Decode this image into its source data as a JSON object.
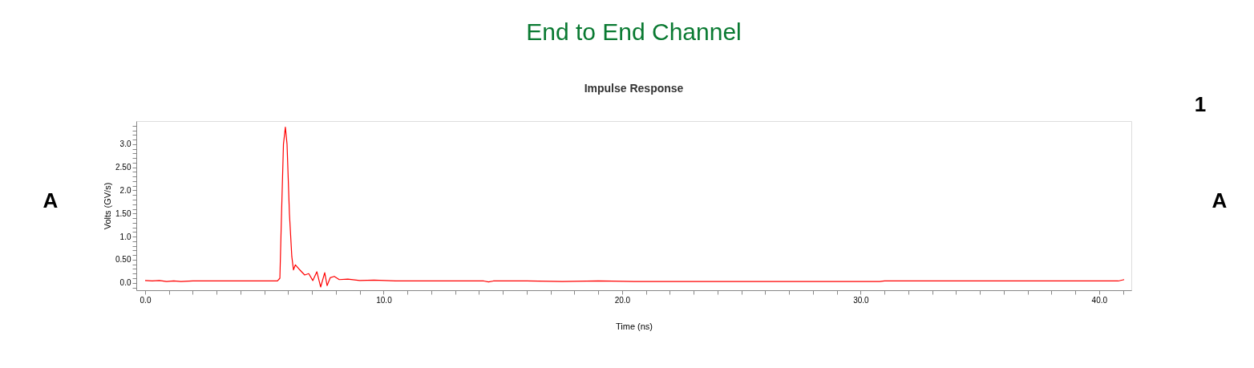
{
  "chart_data": {
    "type": "line",
    "title": "End to End Channel",
    "subtitle": "Impulse Response",
    "xlabel": "Time (ns)",
    "ylabel": "Volts (GV/s)",
    "annotations": [
      "A",
      "A",
      "1"
    ],
    "x": [
      0.0,
      0.3,
      0.6,
      0.9,
      1.2,
      1.5,
      2.0,
      3.0,
      4.0,
      5.0,
      5.55,
      5.65,
      5.72,
      5.8,
      5.88,
      5.95,
      6.05,
      6.15,
      6.22,
      6.3,
      6.45,
      6.69,
      6.86,
      7.03,
      7.2,
      7.36,
      7.53,
      7.63,
      7.76,
      7.93,
      8.14,
      8.5,
      9.0,
      9.6,
      10.5,
      14.2,
      14.4,
      14.6,
      16.0,
      17.5,
      19.0,
      20.5,
      25.0,
      30.8,
      31.0,
      35.5,
      37.5,
      39.5,
      40.8,
      41.05
    ],
    "series": [
      {
        "color": "#ff0000",
        "values": [
          0.05,
          0.04,
          0.05,
          0.03,
          0.04,
          0.03,
          0.04,
          0.04,
          0.04,
          0.04,
          0.04,
          0.1,
          1.5,
          3.0,
          3.37,
          3.0,
          1.5,
          0.57,
          0.28,
          0.39,
          0.3,
          0.17,
          0.2,
          0.05,
          0.24,
          -0.09,
          0.22,
          -0.06,
          0.11,
          0.14,
          0.07,
          0.08,
          0.05,
          0.06,
          0.04,
          0.04,
          0.02,
          0.04,
          0.04,
          0.03,
          0.04,
          0.03,
          0.03,
          0.03,
          0.04,
          0.04,
          0.04,
          0.04,
          0.04,
          0.07
        ]
      }
    ],
    "xlim": [
      -0.37,
      41.35
    ],
    "ylim": [
      -0.16,
      3.5
    ],
    "xticks": [
      {
        "value": 0,
        "label": "0.0"
      },
      {
        "value": 1,
        "label": null
      },
      {
        "value": 2,
        "label": null
      },
      {
        "value": 3,
        "label": null
      },
      {
        "value": 4,
        "label": null
      },
      {
        "value": 5,
        "label": null
      },
      {
        "value": 6,
        "label": null
      },
      {
        "value": 7,
        "label": null
      },
      {
        "value": 8,
        "label": null
      },
      {
        "value": 9,
        "label": null
      },
      {
        "value": 10,
        "label": "10.0"
      },
      {
        "value": 11,
        "label": null
      },
      {
        "value": 12,
        "label": null
      },
      {
        "value": 13,
        "label": null
      },
      {
        "value": 14,
        "label": null
      },
      {
        "value": 15,
        "label": null
      },
      {
        "value": 16,
        "label": null
      },
      {
        "value": 17,
        "label": null
      },
      {
        "value": 18,
        "label": null
      },
      {
        "value": 19,
        "label": null
      },
      {
        "value": 20,
        "label": "20.0"
      },
      {
        "value": 21,
        "label": null
      },
      {
        "value": 22,
        "label": null
      },
      {
        "value": 23,
        "label": null
      },
      {
        "value": 24,
        "label": null
      },
      {
        "value": 25,
        "label": null
      },
      {
        "value": 26,
        "label": null
      },
      {
        "value": 27,
        "label": null
      },
      {
        "value": 28,
        "label": null
      },
      {
        "value": 29,
        "label": null
      },
      {
        "value": 30,
        "label": "30.0"
      },
      {
        "value": 31,
        "label": null
      },
      {
        "value": 32,
        "label": null
      },
      {
        "value": 33,
        "label": null
      },
      {
        "value": 34,
        "label": null
      },
      {
        "value": 35,
        "label": null
      },
      {
        "value": 36,
        "label": null
      },
      {
        "value": 37,
        "label": null
      },
      {
        "value": 38,
        "label": null
      },
      {
        "value": 39,
        "label": null
      },
      {
        "value": 40,
        "label": "40.0"
      },
      {
        "value": 41,
        "label": null
      }
    ],
    "yticks": [
      {
        "value": -0.1,
        "label": null
      },
      {
        "value": 0,
        "label": "0.0"
      },
      {
        "value": 0.1,
        "label": null
      },
      {
        "value": 0.2,
        "label": null
      },
      {
        "value": 0.3,
        "label": null
      },
      {
        "value": 0.4,
        "label": null
      },
      {
        "value": 0.5,
        "label": "0.50"
      },
      {
        "value": 0.6,
        "label": null
      },
      {
        "value": 0.7,
        "label": null
      },
      {
        "value": 0.8,
        "label": null
      },
      {
        "value": 0.9,
        "label": null
      },
      {
        "value": 1.0,
        "label": "1.0"
      },
      {
        "value": 1.1,
        "label": null
      },
      {
        "value": 1.2,
        "label": null
      },
      {
        "value": 1.3,
        "label": null
      },
      {
        "value": 1.4,
        "label": null
      },
      {
        "value": 1.5,
        "label": "1.50"
      },
      {
        "value": 1.6,
        "label": null
      },
      {
        "value": 1.7,
        "label": null
      },
      {
        "value": 1.8,
        "label": null
      },
      {
        "value": 1.9,
        "label": null
      },
      {
        "value": 2.0,
        "label": "2.0"
      },
      {
        "value": 2.1,
        "label": null
      },
      {
        "value": 2.2,
        "label": null
      },
      {
        "value": 2.3,
        "label": null
      },
      {
        "value": 2.4,
        "label": null
      },
      {
        "value": 2.5,
        "label": "2.50"
      },
      {
        "value": 2.6,
        "label": null
      },
      {
        "value": 2.7,
        "label": null
      },
      {
        "value": 2.8,
        "label": null
      },
      {
        "value": 2.9,
        "label": null
      },
      {
        "value": 3.0,
        "label": "3.0"
      },
      {
        "value": 3.1,
        "label": null
      },
      {
        "value": 3.2,
        "label": null
      },
      {
        "value": 3.3,
        "label": null
      },
      {
        "value": 3.4,
        "label": null
      }
    ],
    "grid": false,
    "marker": "none",
    "line_style": "solid"
  }
}
